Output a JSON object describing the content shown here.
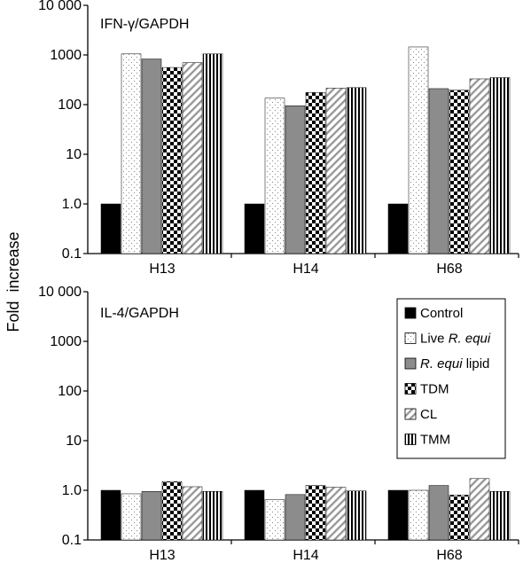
{
  "figure": {
    "ylabel": "Fold  increase"
  },
  "chart_data": [
    {
      "type": "bar",
      "panel_title": "IFN-γ/GAPDH",
      "yscale": "log",
      "ylim": [
        0.1,
        10000
      ],
      "ytick_values": [
        0.1,
        1,
        10,
        100,
        1000,
        10000
      ],
      "ytick_labels": [
        "0.1",
        "1.0",
        "10",
        "100",
        "1000",
        "10 000"
      ],
      "categories": [
        "H13",
        "H14",
        "H68"
      ],
      "series": [
        {
          "name": "Control",
          "pattern": "solid-black",
          "values": [
            1.0,
            1.0,
            1.0
          ]
        },
        {
          "name": "Live R. equi",
          "pattern": "dots",
          "values": [
            1050,
            135,
            1450
          ]
        },
        {
          "name": "R. equi lipid",
          "pattern": "solid-gray",
          "values": [
            830,
            95,
            210
          ]
        },
        {
          "name": "TDM",
          "pattern": "checker",
          "values": [
            560,
            175,
            195
          ]
        },
        {
          "name": "CL",
          "pattern": "diagonal",
          "values": [
            700,
            215,
            330
          ]
        },
        {
          "name": "TMM",
          "pattern": "vertical",
          "values": [
            1050,
            220,
            350
          ]
        }
      ],
      "grid": false
    },
    {
      "type": "bar",
      "panel_title": "IL-4/GAPDH",
      "yscale": "log",
      "ylim": [
        0.1,
        10000
      ],
      "ytick_values": [
        0.1,
        1,
        10,
        100,
        1000,
        10000
      ],
      "ytick_labels": [
        "0.1",
        "1.0",
        "10",
        "100",
        "1000",
        "10 000"
      ],
      "categories": [
        "H13",
        "H14",
        "H68"
      ],
      "series": [
        {
          "name": "Control",
          "pattern": "solid-black",
          "values": [
            1.0,
            1.0,
            1.0
          ]
        },
        {
          "name": "Live R. equi",
          "pattern": "dots",
          "values": [
            0.85,
            0.65,
            1.0
          ]
        },
        {
          "name": "R. equi lipid",
          "pattern": "solid-gray",
          "values": [
            0.95,
            0.82,
            1.25
          ]
        },
        {
          "name": "TDM",
          "pattern": "checker",
          "values": [
            1.5,
            1.25,
            0.8
          ]
        },
        {
          "name": "CL",
          "pattern": "diagonal",
          "values": [
            1.18,
            1.15,
            1.72
          ]
        },
        {
          "name": "TMM",
          "pattern": "vertical",
          "values": [
            0.95,
            0.97,
            0.95
          ]
        }
      ],
      "grid": false,
      "legend": {
        "placement": "right",
        "entries": [
          {
            "pattern": "solid-black",
            "parts": [
              {
                "text": "Control",
                "italic": false
              }
            ]
          },
          {
            "pattern": "dots",
            "parts": [
              {
                "text": "Live ",
                "italic": false
              },
              {
                "text": "R. equi",
                "italic": true
              }
            ]
          },
          {
            "pattern": "solid-gray",
            "parts": [
              {
                "text": "R. equi",
                "italic": true
              },
              {
                "text": " lipid",
                "italic": false
              }
            ]
          },
          {
            "pattern": "checker",
            "parts": [
              {
                "text": "TDM",
                "italic": false
              }
            ]
          },
          {
            "pattern": "diagonal",
            "parts": [
              {
                "text": "CL",
                "italic": false
              }
            ]
          },
          {
            "pattern": "vertical",
            "parts": [
              {
                "text": "TMM",
                "italic": false
              }
            ]
          }
        ]
      }
    }
  ]
}
